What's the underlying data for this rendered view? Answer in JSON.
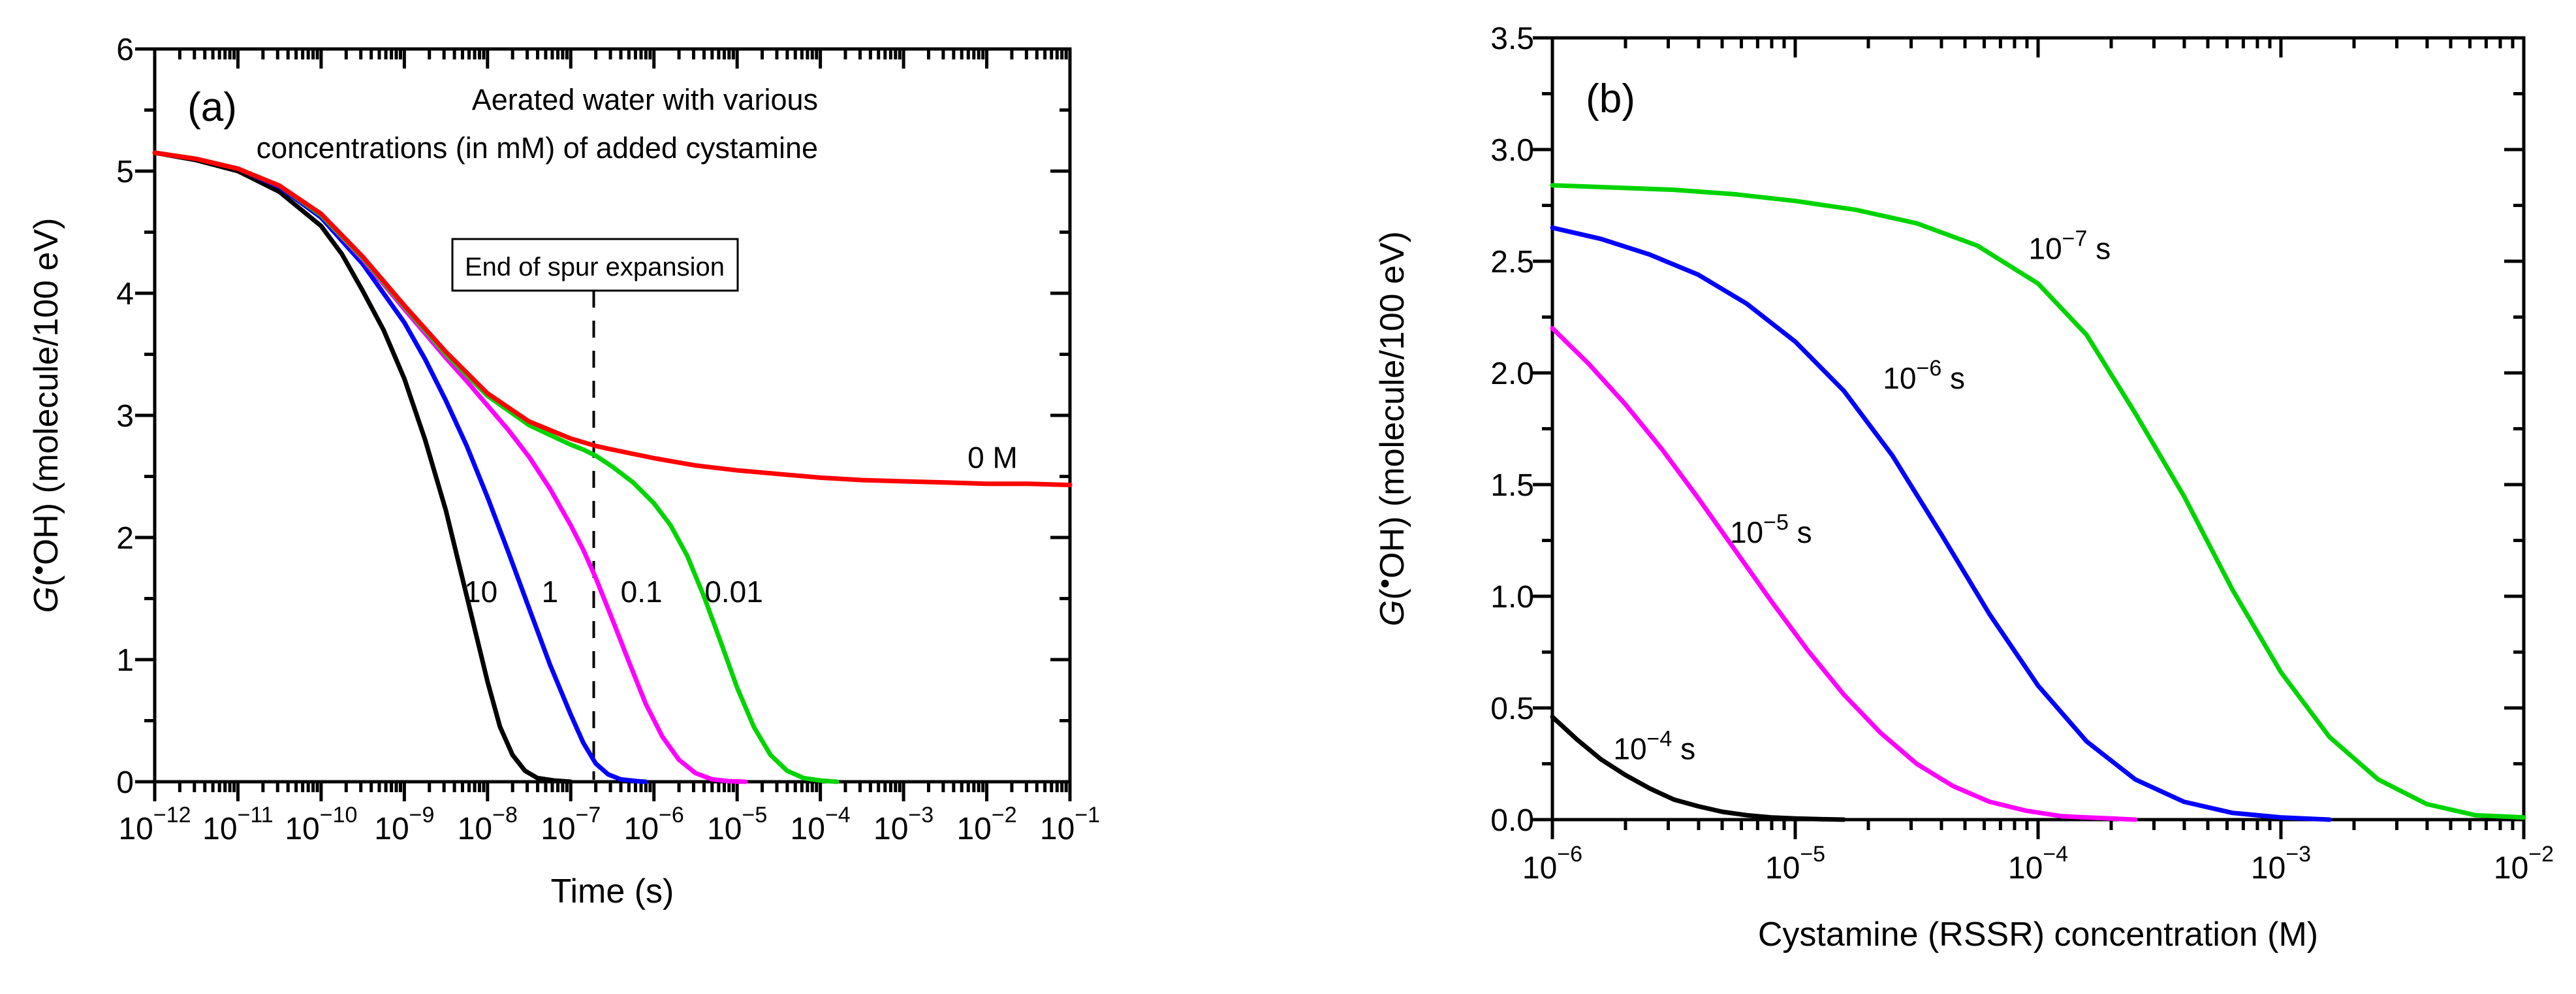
{
  "figure_caption_tags": [
    "(a)",
    "(b)"
  ],
  "axis_color": "#000000",
  "background_color": "#ffffff",
  "chart_data": [
    {
      "panel": "a",
      "panel_tag": "(a)",
      "type": "line",
      "title_lines": [
        "Aerated water with various",
        "concentrations (in mM) of added cystamine"
      ],
      "xlabel": "Time (s)",
      "ylabel_parts": {
        "quantity_italic": "G",
        "open_paren": "(",
        "radical_dot": "•",
        "rest": "OH) (molecule/100 eV)"
      },
      "x_scale": "log",
      "x_range": [
        1e-12,
        0.1
      ],
      "x_tick_exponents": [
        -12,
        -11,
        -10,
        -9,
        -8,
        -7,
        -6,
        -5,
        -4,
        -3,
        -2,
        -1
      ],
      "x_tick_labels": [
        "10^-12",
        "10^-11",
        "10^-10",
        "10^-9",
        "10^-8",
        "10^-7",
        "10^-6",
        "10^-5",
        "10^-4",
        "10^-3",
        "10^-2",
        "10^-1"
      ],
      "y_range": [
        0,
        6
      ],
      "y_major_step": 1,
      "y_minor_step": 0.5,
      "y_tick_labels": [
        "0",
        "1",
        "2",
        "3",
        "4",
        "5",
        "6"
      ],
      "grid": false,
      "annotation": {
        "label": "End of spur expansion",
        "x_value_s": 2e-07,
        "log10_x": -6.73,
        "line_style": "dashed"
      },
      "series": [
        {
          "name": "10 mM cystamine",
          "label": "10",
          "color": "#000000",
          "label_at_log10x_g": [
            -8.08,
            1.47
          ],
          "points_log10x_g": [
            [
              -12,
              5.15
            ],
            [
              -11.5,
              5.09
            ],
            [
              -11,
              5.0
            ],
            [
              -10.5,
              4.83
            ],
            [
              -10,
              4.55
            ],
            [
              -9.75,
              4.32
            ],
            [
              -9.5,
              4.02
            ],
            [
              -9.25,
              3.7
            ],
            [
              -9,
              3.3
            ],
            [
              -8.75,
              2.8
            ],
            [
              -8.5,
              2.22
            ],
            [
              -8.25,
              1.52
            ],
            [
              -8,
              0.82
            ],
            [
              -7.85,
              0.45
            ],
            [
              -7.7,
              0.22
            ],
            [
              -7.55,
              0.09
            ],
            [
              -7.4,
              0.03
            ],
            [
              -7.2,
              0.01
            ],
            [
              -7,
              0
            ]
          ]
        },
        {
          "name": "1 mM cystamine",
          "label": "1",
          "color": "#0000ff",
          "label_at_log10x_g": [
            -7.25,
            1.47
          ],
          "points_log10x_g": [
            [
              -12,
              5.15
            ],
            [
              -11.5,
              5.1
            ],
            [
              -11,
              5.02
            ],
            [
              -10.5,
              4.87
            ],
            [
              -10,
              4.62
            ],
            [
              -9.5,
              4.24
            ],
            [
              -9,
              3.76
            ],
            [
              -8.75,
              3.46
            ],
            [
              -8.5,
              3.12
            ],
            [
              -8.25,
              2.75
            ],
            [
              -8,
              2.33
            ],
            [
              -7.75,
              1.88
            ],
            [
              -7.5,
              1.42
            ],
            [
              -7.25,
              0.96
            ],
            [
              -7,
              0.55
            ],
            [
              -6.85,
              0.32
            ],
            [
              -6.7,
              0.15
            ],
            [
              -6.55,
              0.06
            ],
            [
              -6.4,
              0.02
            ],
            [
              -6.2,
              0.005
            ],
            [
              -6.1,
              0
            ]
          ]
        },
        {
          "name": "0.1 mM cystamine",
          "label": "0.1",
          "color": "#ff00ff",
          "label_at_log10x_g": [
            -6.15,
            1.47
          ],
          "points_log10x_g": [
            [
              -12,
              5.15
            ],
            [
              -11.5,
              5.1
            ],
            [
              -11,
              5.02
            ],
            [
              -10.5,
              4.88
            ],
            [
              -10,
              4.64
            ],
            [
              -9.5,
              4.28
            ],
            [
              -9,
              3.87
            ],
            [
              -8.5,
              3.47
            ],
            [
              -8.25,
              3.28
            ],
            [
              -8,
              3.08
            ],
            [
              -7.75,
              2.88
            ],
            [
              -7.5,
              2.66
            ],
            [
              -7.25,
              2.4
            ],
            [
              -7,
              2.1
            ],
            [
              -6.85,
              1.9
            ],
            [
              -6.7,
              1.67
            ],
            [
              -6.5,
              1.33
            ],
            [
              -6.3,
              0.98
            ],
            [
              -6.1,
              0.64
            ],
            [
              -5.9,
              0.37
            ],
            [
              -5.7,
              0.18
            ],
            [
              -5.5,
              0.07
            ],
            [
              -5.3,
              0.02
            ],
            [
              -5.1,
              0.005
            ],
            [
              -4.9,
              0
            ]
          ]
        },
        {
          "name": "0.01 mM cystamine",
          "label": "0.01",
          "color": "#00d400",
          "label_at_log10x_g": [
            -5.04,
            1.47
          ],
          "points_log10x_g": [
            [
              -12,
              5.15
            ],
            [
              -11.5,
              5.1
            ],
            [
              -11,
              5.02
            ],
            [
              -10.5,
              4.88
            ],
            [
              -10,
              4.64
            ],
            [
              -9.5,
              4.29
            ],
            [
              -9,
              3.89
            ],
            [
              -8.5,
              3.5
            ],
            [
              -8,
              3.16
            ],
            [
              -7.5,
              2.92
            ],
            [
              -7.25,
              2.84
            ],
            [
              -7,
              2.76
            ],
            [
              -6.85,
              2.72
            ],
            [
              -6.7,
              2.67
            ],
            [
              -6.5,
              2.58
            ],
            [
              -6.25,
              2.45
            ],
            [
              -6,
              2.28
            ],
            [
              -5.8,
              2.1
            ],
            [
              -5.6,
              1.85
            ],
            [
              -5.4,
              1.52
            ],
            [
              -5.2,
              1.15
            ],
            [
              -5,
              0.77
            ],
            [
              -4.8,
              0.45
            ],
            [
              -4.6,
              0.22
            ],
            [
              -4.4,
              0.09
            ],
            [
              -4.2,
              0.03
            ],
            [
              -4,
              0.01
            ],
            [
              -3.8,
              0
            ]
          ]
        },
        {
          "name": "0 M (no cystamine)",
          "label": "0 M",
          "color": "#ff0000",
          "label_at_log10x_g": [
            -1.93,
            2.57
          ],
          "points_log10x_g": [
            [
              -12,
              5.15
            ],
            [
              -11.5,
              5.1
            ],
            [
              -11,
              5.02
            ],
            [
              -10.5,
              4.88
            ],
            [
              -10,
              4.65
            ],
            [
              -9.5,
              4.3
            ],
            [
              -9,
              3.9
            ],
            [
              -8.5,
              3.52
            ],
            [
              -8,
              3.18
            ],
            [
              -7.5,
              2.95
            ],
            [
              -7,
              2.81
            ],
            [
              -6.7,
              2.75
            ],
            [
              -6.5,
              2.72
            ],
            [
              -6,
              2.65
            ],
            [
              -5.5,
              2.59
            ],
            [
              -5,
              2.55
            ],
            [
              -4.5,
              2.52
            ],
            [
              -4,
              2.49
            ],
            [
              -3.5,
              2.47
            ],
            [
              -3,
              2.46
            ],
            [
              -2.5,
              2.45
            ],
            [
              -2,
              2.44
            ],
            [
              -1.5,
              2.44
            ],
            [
              -1,
              2.43
            ]
          ]
        }
      ]
    },
    {
      "panel": "b",
      "panel_tag": "(b)",
      "type": "line",
      "title_lines": [],
      "xlabel": "Cystamine (RSSR) concentration (M)",
      "ylabel_parts": {
        "quantity_italic": "G",
        "open_paren": "(",
        "radical_dot": "•",
        "rest": "OH) (molecule/100 eV)"
      },
      "x_scale": "log",
      "x_range": [
        1e-06,
        0.01
      ],
      "x_tick_exponents": [
        -6,
        -5,
        -4,
        -3,
        -2
      ],
      "x_tick_labels": [
        "10^-6",
        "10^-5",
        "10^-4",
        "10^-3",
        "10^-2"
      ],
      "y_range": [
        0,
        3.5
      ],
      "y_major_step": 0.5,
      "y_minor_step": 0.25,
      "y_tick_labels": [
        "0.0",
        "0.5",
        "1.0",
        "1.5",
        "2.0",
        "2.5",
        "3.0",
        "3.5"
      ],
      "grid": false,
      "series": [
        {
          "name": "t = 1e-7 s",
          "label": {
            "base": "10",
            "exponent": -7,
            "suffix": " s"
          },
          "color": "#00d400",
          "label_at_log10x_g": [
            -3.87,
            2.51
          ],
          "points_log10x_g": [
            [
              -6,
              2.84
            ],
            [
              -5.75,
              2.83
            ],
            [
              -5.5,
              2.82
            ],
            [
              -5.25,
              2.8
            ],
            [
              -5,
              2.77
            ],
            [
              -4.75,
              2.73
            ],
            [
              -4.5,
              2.67
            ],
            [
              -4.25,
              2.57
            ],
            [
              -4,
              2.4
            ],
            [
              -3.8,
              2.17
            ],
            [
              -3.6,
              1.82
            ],
            [
              -3.4,
              1.45
            ],
            [
              -3.2,
              1.03
            ],
            [
              -3,
              0.66
            ],
            [
              -2.8,
              0.37
            ],
            [
              -2.6,
              0.18
            ],
            [
              -2.4,
              0.07
            ],
            [
              -2.2,
              0.02
            ],
            [
              -2,
              0.01
            ]
          ]
        },
        {
          "name": "t = 1e-6 s",
          "label": {
            "base": "10",
            "exponent": -6,
            "suffix": " s"
          },
          "color": "#0000ff",
          "label_at_log10x_g": [
            -4.47,
            1.93
          ],
          "points_log10x_g": [
            [
              -6,
              2.65
            ],
            [
              -5.8,
              2.6
            ],
            [
              -5.6,
              2.53
            ],
            [
              -5.4,
              2.44
            ],
            [
              -5.2,
              2.31
            ],
            [
              -5,
              2.14
            ],
            [
              -4.8,
              1.92
            ],
            [
              -4.6,
              1.63
            ],
            [
              -4.4,
              1.28
            ],
            [
              -4.2,
              0.92
            ],
            [
              -4,
              0.6
            ],
            [
              -3.8,
              0.35
            ],
            [
              -3.6,
              0.18
            ],
            [
              -3.4,
              0.08
            ],
            [
              -3.2,
              0.03
            ],
            [
              -3,
              0.01
            ],
            [
              -2.8,
              0
            ]
          ]
        },
        {
          "name": "t = 1e-5 s",
          "label": {
            "base": "10",
            "exponent": -5,
            "suffix": " s"
          },
          "color": "#ff00ff",
          "label_at_log10x_g": [
            -5.1,
            1.24
          ],
          "points_log10x_g": [
            [
              -6,
              2.2
            ],
            [
              -5.85,
              2.04
            ],
            [
              -5.7,
              1.86
            ],
            [
              -5.55,
              1.66
            ],
            [
              -5.4,
              1.44
            ],
            [
              -5.25,
              1.21
            ],
            [
              -5.1,
              0.98
            ],
            [
              -4.95,
              0.76
            ],
            [
              -4.8,
              0.56
            ],
            [
              -4.65,
              0.39
            ],
            [
              -4.5,
              0.25
            ],
            [
              -4.35,
              0.15
            ],
            [
              -4.2,
              0.08
            ],
            [
              -4.05,
              0.04
            ],
            [
              -3.9,
              0.015
            ],
            [
              -3.7,
              0.005
            ],
            [
              -3.6,
              0
            ]
          ]
        },
        {
          "name": "t = 1e-4 s",
          "label": {
            "base": "10",
            "exponent": -4,
            "suffix": " s"
          },
          "color": "#000000",
          "label_at_log10x_g": [
            -5.58,
            0.27
          ],
          "points_log10x_g": [
            [
              -6,
              0.46
            ],
            [
              -5.9,
              0.36
            ],
            [
              -5.8,
              0.27
            ],
            [
              -5.7,
              0.2
            ],
            [
              -5.6,
              0.14
            ],
            [
              -5.5,
              0.09
            ],
            [
              -5.4,
              0.06
            ],
            [
              -5.3,
              0.035
            ],
            [
              -5.2,
              0.02
            ],
            [
              -5.1,
              0.01
            ],
            [
              -5,
              0.005
            ],
            [
              -4.9,
              0.002
            ],
            [
              -4.8,
              0
            ]
          ]
        }
      ]
    }
  ]
}
